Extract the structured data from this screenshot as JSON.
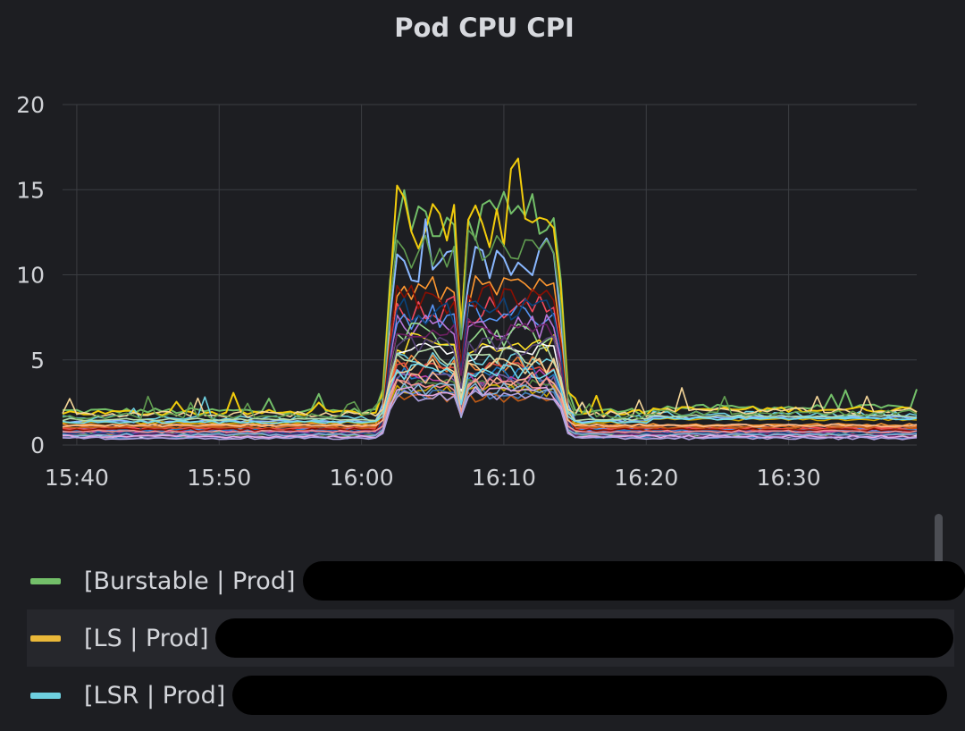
{
  "panel": {
    "title": "Pod CPU CPI"
  },
  "chart_data": {
    "type": "line",
    "title": "Pod CPU CPI",
    "xlabel": "",
    "ylabel": "",
    "x_ticks": [
      "15:40",
      "15:50",
      "16:00",
      "16:10",
      "16:20",
      "16:30"
    ],
    "y_ticks": [
      "0",
      "5",
      "10",
      "15",
      "20"
    ],
    "ylim": [
      0,
      20
    ],
    "x_range": [
      "15:39",
      "16:39"
    ],
    "grid": true,
    "legend_position": "bottom",
    "burst_window": [
      "16:02",
      "16:14"
    ],
    "series_colors": [
      "#73bf69",
      "#f2cc0c",
      "#8ab8ff",
      "#ff9830",
      "#f2495c",
      "#5794f2",
      "#b877d9",
      "#96d98d",
      "#fade2a",
      "#ffffff",
      "#6ed0e0",
      "#ef843c",
      "#e24d42",
      "#1f78c1",
      "#ba43a9",
      "#705da0",
      "#508642",
      "#cca300",
      "#447ebc",
      "#c15c17",
      "#890f02",
      "#0a437c",
      "#6d1f62",
      "#584477",
      "#b7dbab",
      "#f4d598",
      "#70dbed",
      "#f9ba8f",
      "#f29191",
      "#82b5d8",
      "#e5a8e2",
      "#aea2e0",
      "#629e51"
    ],
    "series": [
      {
        "name": "[Burstable | Prod]",
        "color": "#73bf69",
        "baseline": 2.0,
        "burst": 13.5
      },
      {
        "name": "[LS | Prod]",
        "color": "#f2cc0c",
        "baseline": 1.9,
        "burst": 12.5
      },
      {
        "name": "[LSR | Prod]",
        "color": "#6ed0e0",
        "baseline": 1.4,
        "burst": 10.5
      }
    ]
  },
  "legend": {
    "items": [
      {
        "label": "[Burstable | Prod]",
        "color": "#73bf69"
      },
      {
        "label": "[LS | Prod]",
        "color": "#eab839"
      },
      {
        "label": "[LSR | Prod]",
        "color": "#6ed0e0"
      }
    ]
  }
}
